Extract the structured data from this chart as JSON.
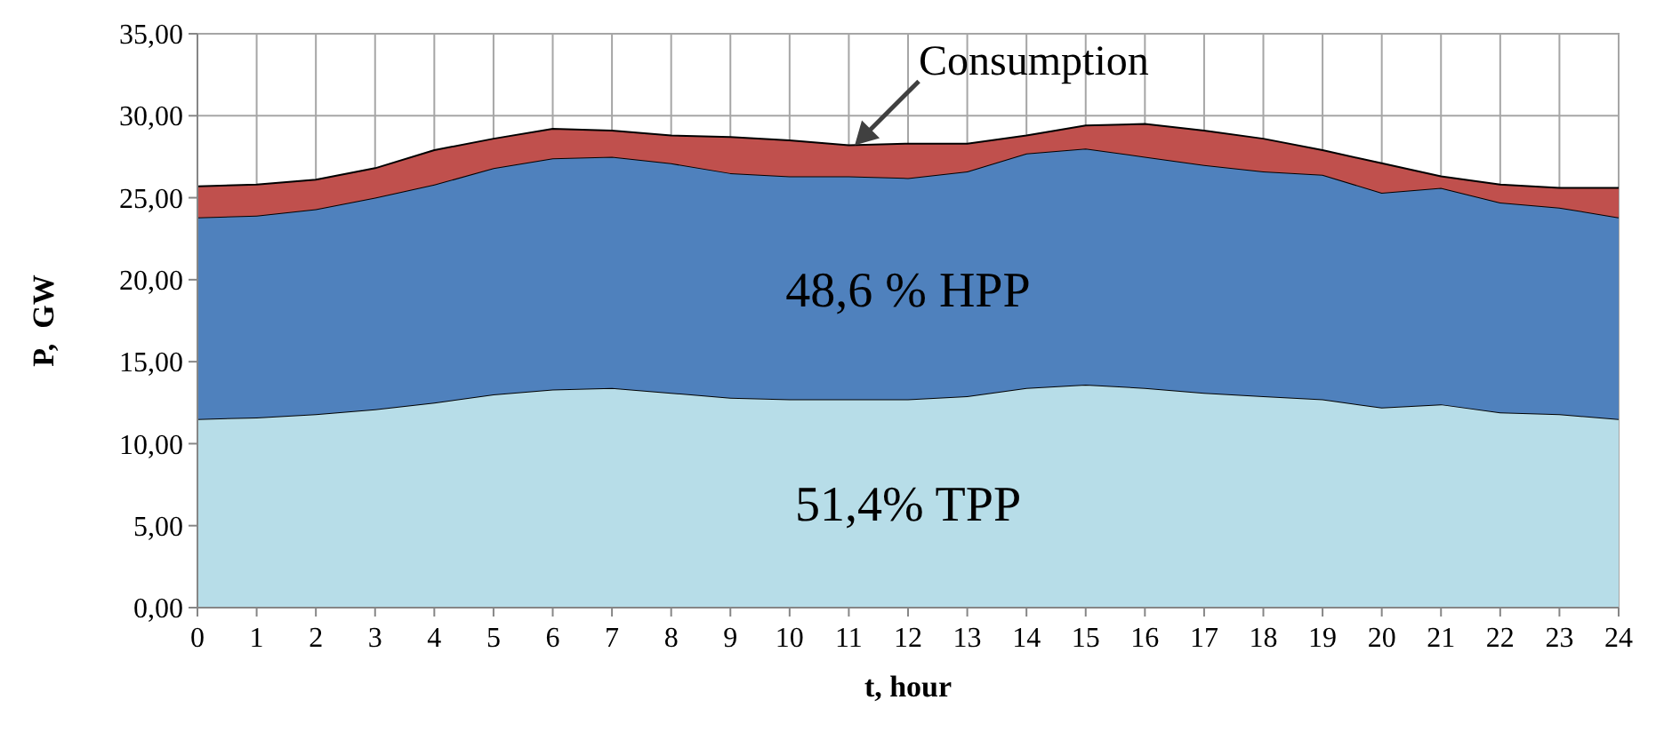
{
  "chart_data": {
    "type": "area",
    "stacked": true,
    "xlabel": "t, hour",
    "ylabel": "P,  GW",
    "x": [
      0,
      1,
      2,
      3,
      4,
      5,
      6,
      7,
      8,
      9,
      10,
      11,
      12,
      13,
      14,
      15,
      16,
      17,
      18,
      19,
      20,
      21,
      22,
      23,
      24
    ],
    "series": [
      {
        "color": "#b7dde8",
        "values": [
          11.5,
          11.6,
          11.8,
          12.1,
          12.5,
          13.0,
          13.3,
          13.4,
          13.1,
          12.8,
          12.7,
          12.7,
          12.7,
          12.9,
          13.4,
          13.6,
          13.4,
          13.1,
          12.9,
          12.7,
          12.2,
          12.4,
          11.9,
          11.8,
          11.5
        ]
      },
      {
        "color": "#4f81bd",
        "values": [
          12.3,
          12.3,
          12.5,
          12.9,
          13.3,
          13.8,
          14.1,
          14.1,
          14.0,
          13.7,
          13.6,
          13.6,
          13.5,
          13.7,
          14.3,
          14.4,
          14.1,
          13.9,
          13.7,
          13.7,
          13.1,
          13.2,
          12.8,
          12.6,
          12.3
        ]
      },
      {
        "color": "#c0504d",
        "values": [
          1.9,
          1.9,
          1.8,
          1.8,
          2.1,
          1.8,
          1.8,
          1.6,
          1.7,
          2.2,
          2.2,
          1.9,
          2.1,
          1.7,
          1.1,
          1.4,
          2.0,
          2.1,
          2.0,
          1.5,
          1.8,
          0.7,
          1.1,
          1.2,
          1.8
        ]
      }
    ],
    "xlim": [
      0,
      24
    ],
    "xticks": [
      0,
      1,
      2,
      3,
      4,
      5,
      6,
      7,
      8,
      9,
      10,
      11,
      12,
      13,
      14,
      15,
      16,
      17,
      18,
      19,
      20,
      21,
      22,
      23,
      24
    ],
    "ylim": [
      0,
      35
    ],
    "yticks": [
      {
        "value": 0,
        "label": "0,00"
      },
      {
        "value": 5,
        "label": "5,00"
      },
      {
        "value": 10,
        "label": "10,00"
      },
      {
        "value": 15,
        "label": "15,00"
      },
      {
        "value": 20,
        "label": "20,00"
      },
      {
        "value": 25,
        "label": "25,00"
      },
      {
        "value": 30,
        "label": "30,00"
      },
      {
        "value": 35,
        "label": "35,00"
      }
    ],
    "grid": true,
    "annotations": [
      {
        "text": "Consumption",
        "x": 11.1,
        "y": 28.2
      },
      "48,6 % HPP",
      "51,4% TPP"
    ]
  }
}
